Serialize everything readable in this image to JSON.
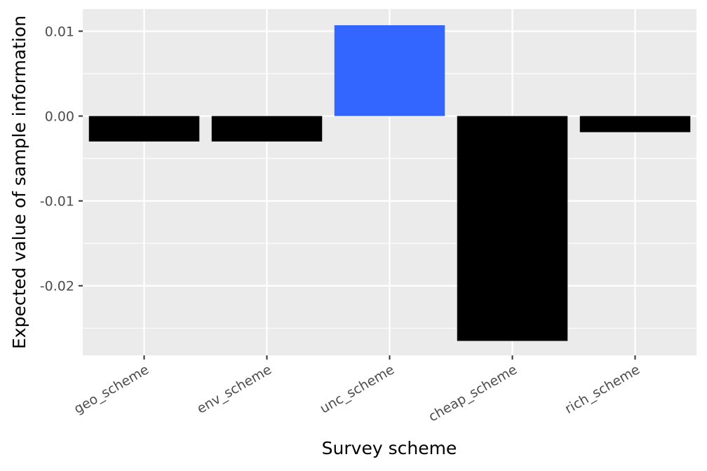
{
  "chart_data": {
    "type": "bar",
    "title": "",
    "xlabel": "Survey scheme",
    "ylabel": "Expected value of sample information",
    "categories": [
      "geo_scheme",
      "env_scheme",
      "unc_scheme",
      "cheap_scheme",
      "rich_scheme"
    ],
    "values": [
      -0.003,
      -0.003,
      0.0107,
      -0.0265,
      -0.0019
    ],
    "ylim": [
      -0.0282,
      0.0126
    ],
    "yticks": [
      0.01,
      0.0,
      -0.01,
      -0.02
    ],
    "ytick_labels": [
      "0.01",
      "0.00",
      "-0.01",
      "-0.02"
    ],
    "grid": true,
    "legend": "none",
    "colors": {
      "panel_background": "#ebebeb",
      "grid": "#ffffff",
      "positive_bar": "#3366ff",
      "negative_bar": "#000000"
    }
  }
}
